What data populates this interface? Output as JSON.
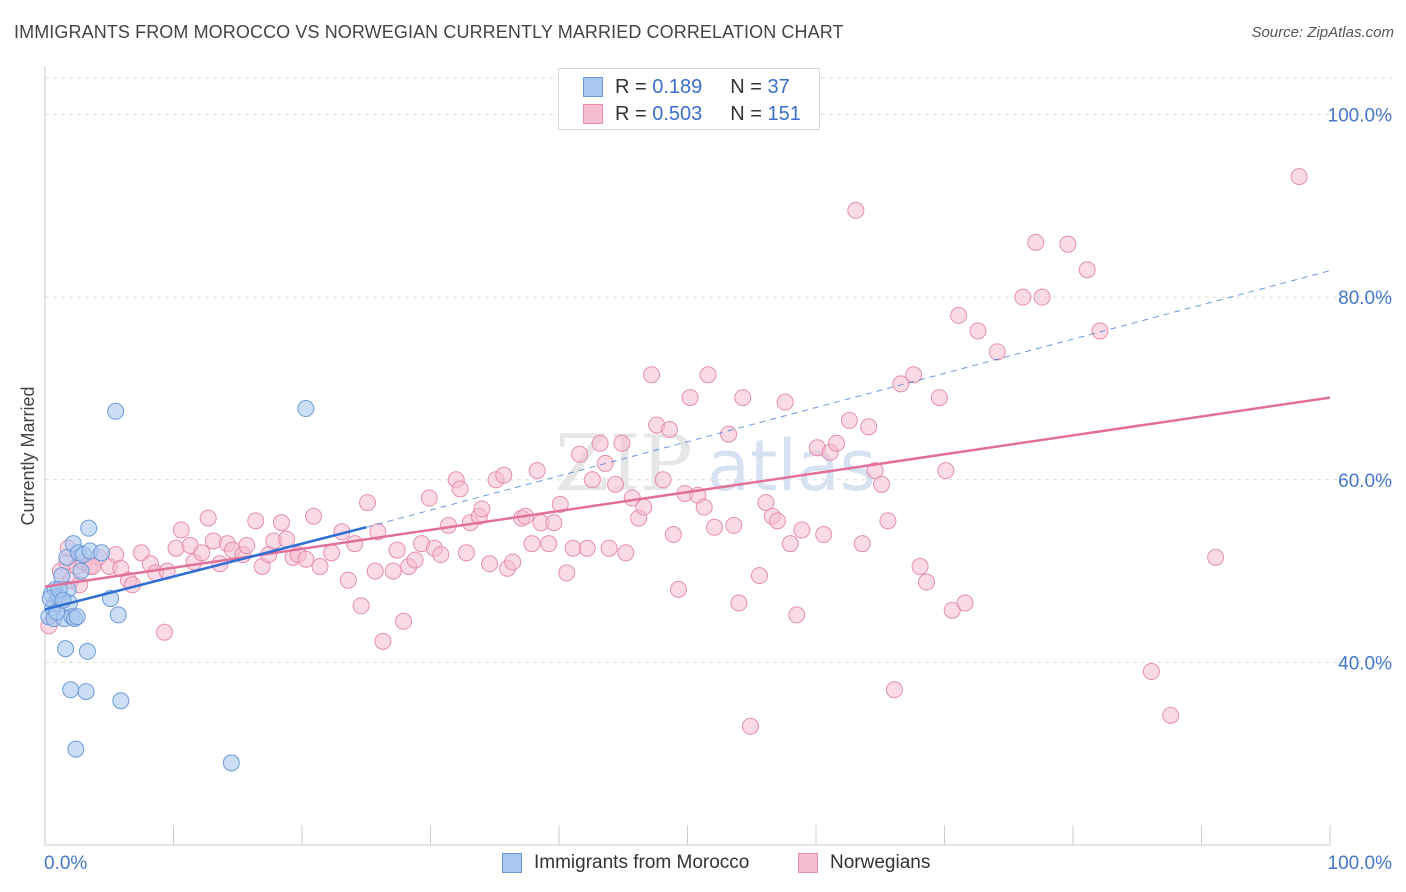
{
  "title": "IMMIGRANTS FROM MOROCCO VS NORWEGIAN CURRENTLY MARRIED CORRELATION CHART",
  "source": "Source: ZipAtlas.com",
  "watermark": {
    "zip": "ZIP",
    "atlas": "atlas"
  },
  "colors": {
    "morocco_fill": "#a9c8f0",
    "morocco_stroke": "#6c9ad6",
    "morocco_line": "#2f6fd1",
    "norway_fill": "#f6bccf",
    "norway_stroke": "#e58fad",
    "norway_line": "#e3709a",
    "tick_label": "#4477cc",
    "grid": "#dddddd"
  },
  "legend": {
    "rows": [
      {
        "r_label": "R = ",
        "r_value": "0.189",
        "n_label": "N = ",
        "n_value": "37"
      },
      {
        "r_label": "R = ",
        "r_value": "0.503",
        "n_label": "N = ",
        "n_value": "151"
      }
    ]
  },
  "chart_data": {
    "type": "scatter",
    "title": "IMMIGRANTS FROM MOROCCO VS NORWEGIAN CURRENTLY MARRIED CORRELATION CHART",
    "xlabel": "",
    "ylabel": "Currently Married",
    "xlim": [
      0,
      100
    ],
    "ylim": [
      20,
      104
    ],
    "x_tick_labels": [
      "0.0%",
      "100.0%"
    ],
    "y_ticks": [
      40,
      60,
      80,
      100
    ],
    "y_tick_labels": [
      "40.0%",
      "60.0%",
      "80.0%",
      "100.0%"
    ],
    "grid": true,
    "legend_position": "top-center",
    "series": [
      {
        "name": "Immigrants from Morocco",
        "trend": {
          "x": [
            0,
            25
          ],
          "y": [
            45.8,
            54.8
          ]
        },
        "trend_dashed": {
          "x": [
            25,
            100
          ],
          "y": [
            54.8,
            82.9
          ]
        },
        "points": [
          [
            0.3,
            45.0
          ],
          [
            0.5,
            47.5
          ],
          [
            0.6,
            46.0
          ],
          [
            0.7,
            44.8
          ],
          [
            0.8,
            48.0
          ],
          [
            1.0,
            47.2
          ],
          [
            1.2,
            47.0
          ],
          [
            1.3,
            49.5
          ],
          [
            1.5,
            44.8
          ],
          [
            1.6,
            41.5
          ],
          [
            1.7,
            51.5
          ],
          [
            1.8,
            48.0
          ],
          [
            1.9,
            46.5
          ],
          [
            2.0,
            37.0
          ],
          [
            2.1,
            45.0
          ],
          [
            2.2,
            53.0
          ],
          [
            2.3,
            44.8
          ],
          [
            2.4,
            30.5
          ],
          [
            2.6,
            52.0
          ],
          [
            2.8,
            50.0
          ],
          [
            3.0,
            51.8
          ],
          [
            3.2,
            36.8
          ],
          [
            3.3,
            41.2
          ],
          [
            3.4,
            54.7
          ],
          [
            3.5,
            52.2
          ],
          [
            4.4,
            52.0
          ],
          [
            5.1,
            47.0
          ],
          [
            5.5,
            67.5
          ],
          [
            5.7,
            45.2
          ],
          [
            5.9,
            35.8
          ],
          [
            14.5,
            29.0
          ],
          [
            20.3,
            67.8
          ],
          [
            0.4,
            47.0
          ],
          [
            0.9,
            45.5
          ],
          [
            1.1,
            48.0
          ],
          [
            2.5,
            45.0
          ],
          [
            1.4,
            46.8
          ]
        ]
      },
      {
        "name": "Norwegians",
        "trend": {
          "x": [
            0,
            100
          ],
          "y": [
            48.3,
            69.0
          ]
        },
        "points": [
          [
            0.3,
            44.0
          ],
          [
            0.8,
            46.5
          ],
          [
            1.2,
            50.0
          ],
          [
            1.7,
            51.0
          ],
          [
            2.0,
            49.0
          ],
          [
            2.5,
            50.5
          ],
          [
            3.0,
            51.0
          ],
          [
            3.5,
            50.5
          ],
          [
            4.2,
            51.5
          ],
          [
            5.0,
            50.5
          ],
          [
            5.5,
            51.8
          ],
          [
            5.9,
            50.3
          ],
          [
            6.5,
            49.0
          ],
          [
            6.8,
            48.5
          ],
          [
            7.5,
            52.0
          ],
          [
            8.2,
            50.8
          ],
          [
            8.6,
            49.8
          ],
          [
            9.3,
            43.3
          ],
          [
            9.5,
            50.0
          ],
          [
            10.2,
            52.5
          ],
          [
            10.6,
            54.5
          ],
          [
            11.3,
            52.8
          ],
          [
            11.6,
            51.0
          ],
          [
            12.2,
            52.0
          ],
          [
            12.7,
            55.8
          ],
          [
            13.1,
            53.3
          ],
          [
            13.6,
            50.8
          ],
          [
            14.2,
            53.0
          ],
          [
            14.6,
            52.3
          ],
          [
            15.4,
            51.8
          ],
          [
            15.7,
            52.8
          ],
          [
            16.4,
            55.5
          ],
          [
            16.9,
            50.5
          ],
          [
            17.4,
            51.8
          ],
          [
            17.8,
            53.3
          ],
          [
            18.4,
            55.3
          ],
          [
            18.8,
            53.5
          ],
          [
            19.3,
            51.5
          ],
          [
            19.7,
            51.8
          ],
          [
            20.3,
            51.3
          ],
          [
            20.9,
            56.0
          ],
          [
            21.4,
            50.5
          ],
          [
            22.3,
            52.0
          ],
          [
            23.1,
            54.3
          ],
          [
            23.6,
            49.0
          ],
          [
            24.1,
            53.0
          ],
          [
            24.6,
            46.2
          ],
          [
            25.1,
            57.5
          ],
          [
            25.7,
            50.0
          ],
          [
            25.9,
            54.3
          ],
          [
            26.3,
            42.3
          ],
          [
            27.1,
            50.0
          ],
          [
            27.4,
            52.3
          ],
          [
            27.9,
            44.5
          ],
          [
            28.3,
            50.5
          ],
          [
            28.8,
            51.2
          ],
          [
            29.3,
            53.0
          ],
          [
            29.9,
            58.0
          ],
          [
            30.3,
            52.5
          ],
          [
            30.8,
            51.8
          ],
          [
            31.4,
            55.0
          ],
          [
            32.0,
            60.0
          ],
          [
            32.3,
            59.0
          ],
          [
            32.8,
            52.0
          ],
          [
            33.1,
            55.3
          ],
          [
            33.8,
            56.0
          ],
          [
            34.0,
            56.8
          ],
          [
            34.6,
            50.8
          ],
          [
            35.1,
            60.0
          ],
          [
            35.7,
            60.5
          ],
          [
            36.0,
            50.3
          ],
          [
            36.4,
            51.0
          ],
          [
            37.1,
            55.8
          ],
          [
            37.4,
            56.0
          ],
          [
            37.9,
            53.0
          ],
          [
            38.3,
            61.0
          ],
          [
            38.6,
            55.3
          ],
          [
            39.2,
            53.0
          ],
          [
            39.6,
            55.3
          ],
          [
            40.1,
            57.3
          ],
          [
            40.6,
            49.8
          ],
          [
            41.1,
            52.5
          ],
          [
            41.6,
            62.8
          ],
          [
            42.2,
            52.5
          ],
          [
            42.6,
            60.0
          ],
          [
            43.2,
            64.0
          ],
          [
            43.6,
            61.8
          ],
          [
            43.9,
            52.5
          ],
          [
            44.4,
            59.5
          ],
          [
            44.9,
            64.0
          ],
          [
            45.2,
            52.0
          ],
          [
            45.7,
            58.0
          ],
          [
            46.2,
            55.8
          ],
          [
            46.6,
            57.0
          ],
          [
            47.2,
            71.5
          ],
          [
            47.6,
            66.0
          ],
          [
            48.1,
            60.0
          ],
          [
            48.6,
            65.5
          ],
          [
            48.9,
            54.0
          ],
          [
            49.3,
            48.0
          ],
          [
            49.8,
            58.5
          ],
          [
            50.2,
            69.0
          ],
          [
            50.8,
            58.3
          ],
          [
            51.3,
            57.0
          ],
          [
            51.6,
            71.5
          ],
          [
            52.1,
            54.8
          ],
          [
            53.2,
            65.0
          ],
          [
            53.6,
            55.0
          ],
          [
            54.0,
            46.5
          ],
          [
            54.3,
            69.0
          ],
          [
            54.9,
            33.0
          ],
          [
            55.6,
            49.5
          ],
          [
            56.1,
            57.5
          ],
          [
            56.6,
            56.0
          ],
          [
            57.0,
            55.5
          ],
          [
            57.6,
            68.5
          ],
          [
            58.0,
            53.0
          ],
          [
            58.5,
            45.2
          ],
          [
            58.9,
            54.5
          ],
          [
            60.1,
            63.5
          ],
          [
            60.6,
            54.0
          ],
          [
            61.1,
            63.0
          ],
          [
            61.6,
            64.0
          ],
          [
            62.6,
            66.5
          ],
          [
            63.1,
            89.5
          ],
          [
            63.6,
            53.0
          ],
          [
            64.1,
            65.8
          ],
          [
            64.6,
            61.0
          ],
          [
            65.1,
            59.5
          ],
          [
            65.6,
            55.5
          ],
          [
            66.1,
            37.0
          ],
          [
            66.6,
            70.5
          ],
          [
            67.6,
            71.5
          ],
          [
            68.1,
            50.5
          ],
          [
            68.6,
            48.8
          ],
          [
            69.6,
            69.0
          ],
          [
            70.1,
            61.0
          ],
          [
            70.6,
            45.7
          ],
          [
            71.1,
            78.0
          ],
          [
            71.6,
            46.5
          ],
          [
            72.6,
            76.3
          ],
          [
            74.1,
            74.0
          ],
          [
            76.1,
            80.0
          ],
          [
            77.1,
            86.0
          ],
          [
            77.6,
            80.0
          ],
          [
            79.6,
            85.8
          ],
          [
            81.1,
            83.0
          ],
          [
            82.1,
            76.3
          ],
          [
            86.1,
            39.0
          ],
          [
            87.6,
            34.2
          ],
          [
            91.1,
            51.5
          ],
          [
            97.6,
            93.2
          ],
          [
            1.8,
            52.5
          ],
          [
            2.7,
            48.5
          ],
          [
            3.7,
            50.5
          ]
        ]
      }
    ]
  },
  "bottom_legend": [
    "Immigrants from Morocco",
    "Norwegians"
  ]
}
